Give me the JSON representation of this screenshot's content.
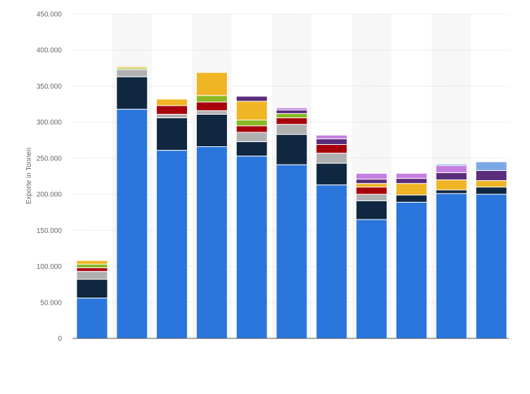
{
  "chart_data": {
    "type": "bar",
    "stacked": true,
    "title": "",
    "xlabel": "",
    "ylabel": "Exporte in Tonnen",
    "ylim": [
      0,
      450000
    ],
    "yticks": [
      0,
      50000,
      100000,
      150000,
      200000,
      250000,
      300000,
      350000,
      400000,
      450000
    ],
    "ytick_labels": [
      "0",
      "50.000",
      "100.000",
      "150.000",
      "200.000",
      "250.000",
      "300.000",
      "350.000",
      "400.000",
      "450.000"
    ],
    "grid": true,
    "categories": [
      "",
      "",
      "",
      "",
      "",
      "",
      "",
      "",
      "",
      "",
      ""
    ],
    "series": [
      {
        "color": "#2a76dd",
        "values": [
          56000,
          318000,
          261000,
          266000,
          253000,
          241000,
          213000,
          165000,
          189000,
          201000,
          200000
        ]
      },
      {
        "color": "#0f2740",
        "values": [
          26000,
          45000,
          45000,
          45000,
          20000,
          42000,
          30000,
          26000,
          10000,
          5000,
          10000
        ]
      },
      {
        "color": "#b0b0b0",
        "values": [
          11000,
          10000,
          5000,
          5000,
          13000,
          14000,
          14000,
          9000,
          0,
          0,
          0
        ]
      },
      {
        "color": "#a8000b",
        "values": [
          5000,
          0,
          12000,
          12000,
          9000,
          9000,
          12000,
          10000,
          0,
          0,
          0
        ]
      },
      {
        "color": "#8ab823",
        "values": [
          5000,
          2000,
          0,
          9000,
          8000,
          6000,
          0,
          0,
          0,
          0,
          0
        ]
      },
      {
        "color": "#f0b524",
        "values": [
          5000,
          2000,
          9000,
          32000,
          26000,
          0,
          0,
          5000,
          16000,
          14000,
          9000
        ]
      },
      {
        "color": "#5a2d7a",
        "values": [
          0,
          0,
          0,
          0,
          7000,
          5000,
          8000,
          6000,
          7000,
          10000,
          14000
        ]
      },
      {
        "color": "#c47ee0",
        "values": [
          0,
          0,
          0,
          0,
          0,
          3000,
          5000,
          8000,
          7000,
          10000,
          0
        ]
      },
      {
        "color": "#79a8e6",
        "values": [
          0,
          0,
          0,
          0,
          0,
          0,
          0,
          0,
          0,
          2000,
          12000
        ]
      }
    ]
  }
}
